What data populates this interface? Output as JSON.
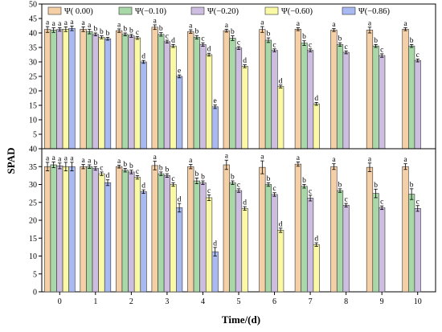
{
  "chart_data": {
    "type": "bar",
    "ylabel": "SPAD",
    "xlabel": "Time/(d)",
    "categories": [
      "0",
      "1",
      "2",
      "3",
      "4",
      "5",
      "6",
      "7",
      "8",
      "9",
      "10"
    ],
    "legend_placement": "top-left",
    "series_names": [
      "Ψ( 0.00)",
      "Ψ(−0.10)",
      "Ψ(−0.20)",
      "Ψ(−0.60)",
      "Ψ(−0.86)"
    ],
    "series_colors": [
      "#f5cfa6",
      "#a8d8a8",
      "#cdbde0",
      "#fafaa6",
      "#a9baf2"
    ],
    "panels": [
      {
        "ylim": [
          0,
          50
        ],
        "yticks": [
          "0",
          "5",
          "10",
          "15",
          "20",
          "25",
          "30",
          "35",
          "40",
          "45",
          "50"
        ],
        "ytick_values": [
          0,
          5,
          10,
          15,
          20,
          25,
          30,
          35,
          40,
          45,
          50
        ],
        "series": [
          {
            "name": "Ψ( 0.00)",
            "values": [
              41.2,
              41.3,
              40.8,
              42.0,
              40.5,
              40.8,
              41.2,
              41.3,
              41.0,
              41.0,
              41.3
            ],
            "errors": [
              1.0,
              0.8,
              0.6,
              0.8,
              0.6,
              0.5,
              1.0,
              0.5,
              0.5,
              1.0,
              0.5
            ],
            "letters": [
              "a",
              "a",
              "a",
              "a",
              "a",
              "a",
              "a",
              "a",
              "a",
              "a",
              "a"
            ]
          },
          {
            "name": "Ψ(−0.10)",
            "values": [
              41.0,
              40.5,
              39.5,
              39.5,
              38.5,
              38.2,
              37.5,
              36.5,
              36.0,
              35.5,
              35.5
            ],
            "errors": [
              0.8,
              0.8,
              0.5,
              0.6,
              0.6,
              0.8,
              0.8,
              0.8,
              0.6,
              0.5,
              0.5
            ],
            "letters": [
              "a",
              "a",
              "b",
              "b",
              "b",
              "b",
              "b",
              "b",
              "b",
              "b",
              "b"
            ]
          },
          {
            "name": "Ψ(−0.20)",
            "values": [
              41.2,
              39.5,
              39.0,
              37.0,
              36.0,
              34.8,
              34.0,
              34.0,
              33.3,
              32.2,
              30.5
            ],
            "errors": [
              0.6,
              0.5,
              0.5,
              0.5,
              0.6,
              0.5,
              0.5,
              0.5,
              0.5,
              0.6,
              0.5
            ],
            "letters": [
              "a",
              "b",
              "b",
              "c",
              "c",
              "c",
              "c",
              "c",
              "c",
              "c",
              "c"
            ]
          },
          {
            "name": "Ψ(−0.60)",
            "values": [
              41.3,
              38.5,
              38.3,
              35.5,
              32.5,
              28.5,
              21.5,
              15.5,
              null,
              null,
              null
            ],
            "errors": [
              0.8,
              0.5,
              0.5,
              0.5,
              0.5,
              0.5,
              0.5,
              0.5,
              null,
              null,
              null
            ],
            "letters": [
              "a",
              "b",
              "c",
              "d",
              "d",
              "d",
              "d",
              "d",
              "",
              "",
              ""
            ]
          },
          {
            "name": "Ψ(−0.86)",
            "values": [
              41.6,
              38.0,
              30.0,
              25.0,
              14.5,
              null,
              null,
              null,
              null,
              null,
              null
            ],
            "errors": [
              0.8,
              0.5,
              0.5,
              0.5,
              0.6,
              null,
              null,
              null,
              null,
              null,
              null
            ],
            "letters": [
              "a",
              "b",
              "d",
              "e",
              "e",
              "",
              "",
              "",
              "",
              "",
              ""
            ]
          }
        ]
      },
      {
        "ylim": [
          0,
          40
        ],
        "yticks": [
          "0",
          "5",
          "10",
          "15",
          "20",
          "25",
          "30",
          "35",
          "40"
        ],
        "ytick_values": [
          0,
          5,
          10,
          15,
          20,
          25,
          30,
          35,
          40
        ],
        "series": [
          {
            "name": "Ψ( 0.00)",
            "values": [
              35.0,
              35.0,
              35.0,
              35.3,
              35.0,
              35.5,
              34.8,
              35.7,
              35.0,
              34.8,
              35.0
            ],
            "errors": [
              1.2,
              0.6,
              0.4,
              1.2,
              0.6,
              1.3,
              1.8,
              0.6,
              0.8,
              1.2,
              0.8
            ],
            "letters": [
              "a",
              "a",
              "a",
              "a",
              "a",
              "a",
              "a",
              "a",
              "a",
              "a",
              "a"
            ]
          },
          {
            "name": "Ψ(−0.10)",
            "values": [
              35.5,
              35.0,
              34.0,
              33.0,
              31.0,
              30.5,
              30.0,
              29.5,
              28.3,
              27.5,
              27.3
            ],
            "errors": [
              0.8,
              0.5,
              0.5,
              0.5,
              0.8,
              0.5,
              0.5,
              0.5,
              0.5,
              1.2,
              1.5
            ],
            "letters": [
              "a",
              "a",
              "b",
              "b",
              "b",
              "b",
              "b",
              "b",
              "b",
              "b",
              "b"
            ]
          },
          {
            "name": "Ψ(−0.20)",
            "values": [
              35.2,
              34.5,
              33.5,
              32.5,
              30.5,
              28.3,
              27.2,
              26.2,
              24.2,
              23.5,
              23.3
            ],
            "errors": [
              0.8,
              0.5,
              0.5,
              0.5,
              0.5,
              0.5,
              0.5,
              0.8,
              0.5,
              0.5,
              0.8
            ],
            "letters": [
              "a",
              "b",
              "b",
              "b",
              "b",
              "c",
              "c",
              "c",
              "c",
              "c",
              "c"
            ]
          },
          {
            "name": "Ψ(−0.60)",
            "values": [
              35.0,
              33.0,
              32.0,
              30.0,
              26.3,
              23.3,
              17.2,
              13.2,
              null,
              null,
              null
            ],
            "errors": [
              1.2,
              0.5,
              0.5,
              0.5,
              0.8,
              0.5,
              0.6,
              0.5,
              null,
              null,
              null
            ],
            "letters": [
              "a",
              "c",
              "c",
              "c",
              "c",
              "d",
              "d",
              "d",
              "",
              "",
              ""
            ]
          },
          {
            "name": "Ψ(−0.86)",
            "values": [
              35.0,
              30.5,
              28.0,
              23.5,
              11.2,
              null,
              null,
              null,
              null,
              null,
              null
            ],
            "errors": [
              1.2,
              0.8,
              0.5,
              1.2,
              1.2,
              null,
              null,
              null,
              null,
              null,
              null
            ],
            "letters": [
              "a",
              "d",
              "d",
              "d",
              "d",
              "",
              "",
              "",
              "",
              "",
              ""
            ]
          }
        ]
      }
    ]
  }
}
